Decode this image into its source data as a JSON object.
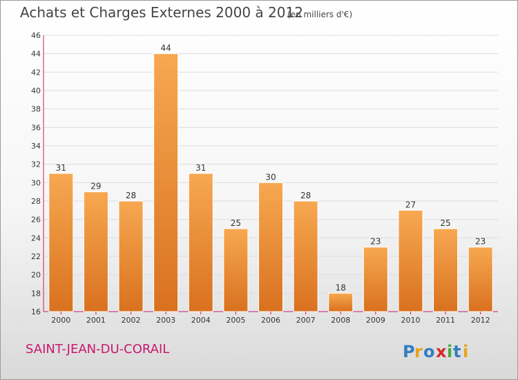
{
  "header": {
    "title": "Achats et Charges Externes 2000 à 2012",
    "unit": "(en milliers d'€)"
  },
  "footer": {
    "commune": "SAINT-JEAN-DU-CORAIL",
    "logo_text": "Proxiti"
  },
  "colors": {
    "bar_light": "#f7a851",
    "bar_dark": "#d9711f",
    "axis": "#c8186e",
    "commune": "#c8186e"
  },
  "chart_data": {
    "type": "bar",
    "title": "Achats et Charges Externes 2000 à 2012",
    "subtitle": "(en milliers d'€)",
    "xlabel": "",
    "ylabel": "",
    "categories": [
      "2000",
      "2001",
      "2002",
      "2003",
      "2004",
      "2005",
      "2006",
      "2007",
      "2008",
      "2009",
      "2010",
      "2011",
      "2012"
    ],
    "values": [
      31,
      29,
      28,
      44,
      31,
      25,
      30,
      28,
      18,
      23,
      27,
      25,
      23
    ],
    "ylim": [
      16,
      46
    ],
    "yticks": [
      16,
      18,
      20,
      22,
      24,
      26,
      28,
      30,
      32,
      34,
      36,
      38,
      40,
      42,
      44,
      46
    ],
    "grid": true,
    "data_labels": true
  }
}
